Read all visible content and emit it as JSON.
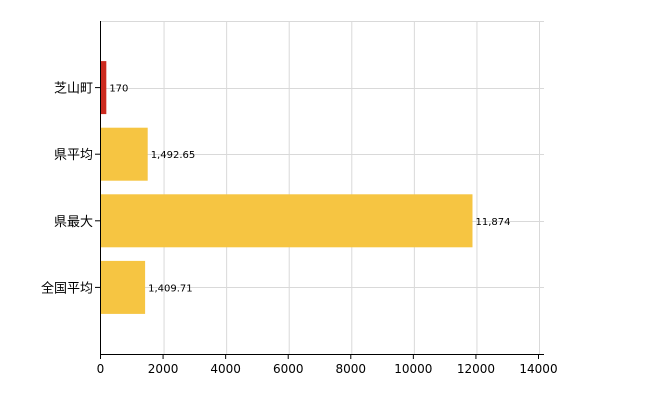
{
  "chart_data": {
    "type": "bar",
    "orientation": "horizontal",
    "categories": [
      "芝山町",
      "県平均",
      "県最大",
      "全国平均"
    ],
    "values": [
      170,
      1492.65,
      11874,
      1409.71
    ],
    "value_labels": [
      "170",
      "1,492.65",
      "11,874",
      "1,409.71"
    ],
    "bar_colors": [
      "#cc2a1e",
      "#f6c542",
      "#f6c542",
      "#f6c542"
    ],
    "xlim": [
      0,
      14000
    ],
    "x_ticks": [
      0,
      2000,
      4000,
      6000,
      8000,
      10000,
      12000,
      14000
    ],
    "x_tick_labels": [
      "0",
      "2000",
      "4000",
      "6000",
      "8000",
      "10000",
      "12000",
      "14000"
    ],
    "grid": true,
    "title": "",
    "xlabel": "",
    "ylabel": ""
  }
}
